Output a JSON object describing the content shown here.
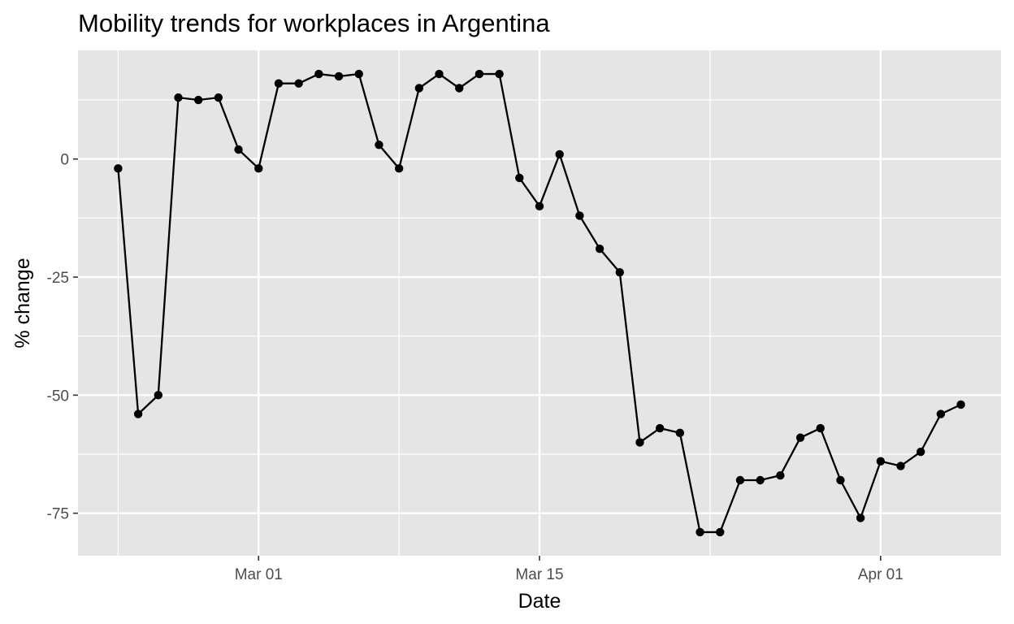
{
  "chart_data": {
    "type": "line",
    "title": "Mobility trends for workplaces in Argentina",
    "xlabel": "Date",
    "ylabel": "% change",
    "x_ticks": [
      {
        "date": "2020-03-01",
        "label": "Mar 01"
      },
      {
        "date": "2020-03-15",
        "label": "Mar 15"
      },
      {
        "date": "2020-04-01",
        "label": "Apr 01"
      }
    ],
    "y_ticks": [
      0,
      -25,
      -50,
      -75
    ],
    "xlim": [
      "2020-02-21",
      "2020-04-07"
    ],
    "ylim": [
      -84,
      23
    ],
    "grid": true,
    "markers": true,
    "colors": {
      "panel_background": "#e5e5e5",
      "grid": "#ffffff",
      "line": "#000000",
      "tick_label": "#4d4d4d"
    },
    "x": [
      "2020-02-23",
      "2020-02-24",
      "2020-02-25",
      "2020-02-26",
      "2020-02-27",
      "2020-02-28",
      "2020-02-29",
      "2020-03-01",
      "2020-03-02",
      "2020-03-03",
      "2020-03-04",
      "2020-03-05",
      "2020-03-06",
      "2020-03-07",
      "2020-03-08",
      "2020-03-09",
      "2020-03-10",
      "2020-03-11",
      "2020-03-12",
      "2020-03-13",
      "2020-03-14",
      "2020-03-15",
      "2020-03-16",
      "2020-03-17",
      "2020-03-18",
      "2020-03-19",
      "2020-03-20",
      "2020-03-21",
      "2020-03-22",
      "2020-03-23",
      "2020-03-24",
      "2020-03-25",
      "2020-03-26",
      "2020-03-27",
      "2020-03-28",
      "2020-03-29",
      "2020-03-30",
      "2020-03-31",
      "2020-04-01",
      "2020-04-02",
      "2020-04-03",
      "2020-04-04",
      "2020-04-05"
    ],
    "y": [
      -2,
      -54,
      -50,
      13,
      12.5,
      13,
      2,
      -2,
      16,
      16,
      18,
      17.5,
      18,
      3,
      -2,
      15,
      18,
      15,
      18,
      18,
      -4,
      -10,
      1,
      -12,
      -19,
      -24,
      -60,
      -57,
      -58,
      -79,
      -79,
      -68,
      -68,
      -67,
      -59,
      -57,
      -68,
      -76,
      -64,
      -65,
      -62,
      -54,
      -52
    ]
  }
}
